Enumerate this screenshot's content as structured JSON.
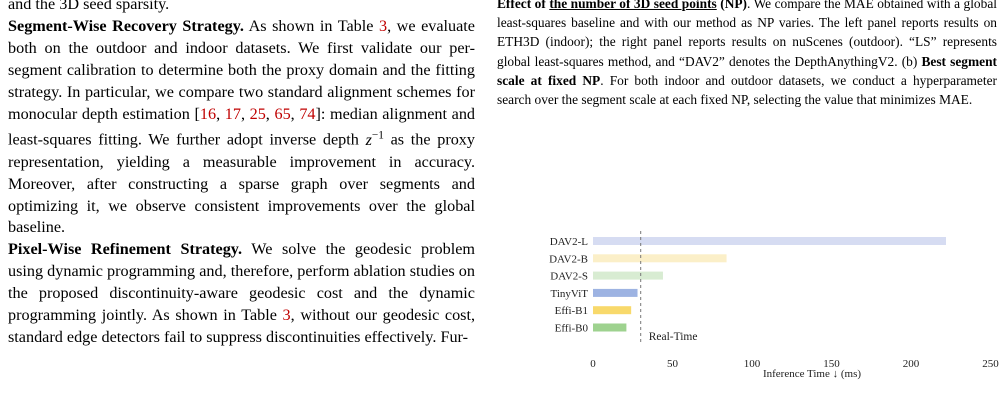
{
  "left_column": {
    "line0": "and the 3D seed sparsity.",
    "segment_heading": "Segment-Wise Recovery Strategy.",
    "segment_p1": " As shown in Table ",
    "table_ref_1": "3",
    "segment_p2": ", we evaluate both on the outdoor and indoor datasets. We first validate our per-segment calibration to determine both the proxy domain and the fitting strategy. In particular, we compare two standard alignment schemes for monocular depth estimation [",
    "refs_a": [
      "16",
      "17",
      "25",
      "65",
      "74"
    ],
    "segment_p3": "]: median alignment and least-squares fitting. We further adopt inverse depth ",
    "math_var": "z",
    "math_exp": "−1",
    "segment_p4": " as the proxy representation, yielding a measurable improvement in accuracy. Moreover, after constructing a sparse graph over segments and optimizing it, we observe consistent improvements over the global baseline.",
    "pixel_heading": "Pixel-Wise Refinement Strategy.",
    "pixel_p1": " We solve the geodesic problem using dynamic programming and, therefore, perform ablation studies on the proposed discontinuity-aware geodesic cost and the dynamic programming jointly. As shown in Table ",
    "table_ref_2": "3",
    "pixel_p2": ", without our geodesic cost, standard edge detectors fail to suppress discontinuities effectively. Fur-"
  },
  "right_column": {
    "cap_lead": "Effect of ",
    "cap_np_label": "the number of 3D seed points",
    "cap_np_abbr": " (NP)",
    "cap_t1": ". We compare the MAE obtained with a global least-squares baseline and with our method as NP varies. The left panel reports results on ETH3D (indoor); the right panel reports results on nuScenes (outdoor). “LS” represents global least-squares method, and “DAV2” denotes the DepthAnythingV2. (b) ",
    "cap_b_bold": "Best segment scale at fixed NP",
    "cap_t2": ". For both indoor and outdoor datasets, we conduct a hyperparameter search over the segment scale at each fixed NP, selecting the value that minimizes MAE."
  },
  "chart_data": {
    "type": "bar",
    "orientation": "horizontal",
    "categories": [
      "DAV2-L",
      "DAV2-B",
      "DAV2-S",
      "TinyViT",
      "Effi-B1",
      "Effi-B0"
    ],
    "values": [
      222,
      84,
      44,
      28,
      24,
      21
    ],
    "colors": [
      "#d6dcf2",
      "#fbefc8",
      "#d8ecd2",
      "#9db3e2",
      "#f8d96b",
      "#9ed28f"
    ],
    "xlabel": "Inference Time ↓ (ms)",
    "xticks": [
      0,
      50,
      100,
      150,
      200,
      250
    ],
    "xlim": [
      0,
      260
    ],
    "reference_line": {
      "value": 30,
      "label": "Real-Time",
      "style": "dashed"
    },
    "grid": false
  }
}
